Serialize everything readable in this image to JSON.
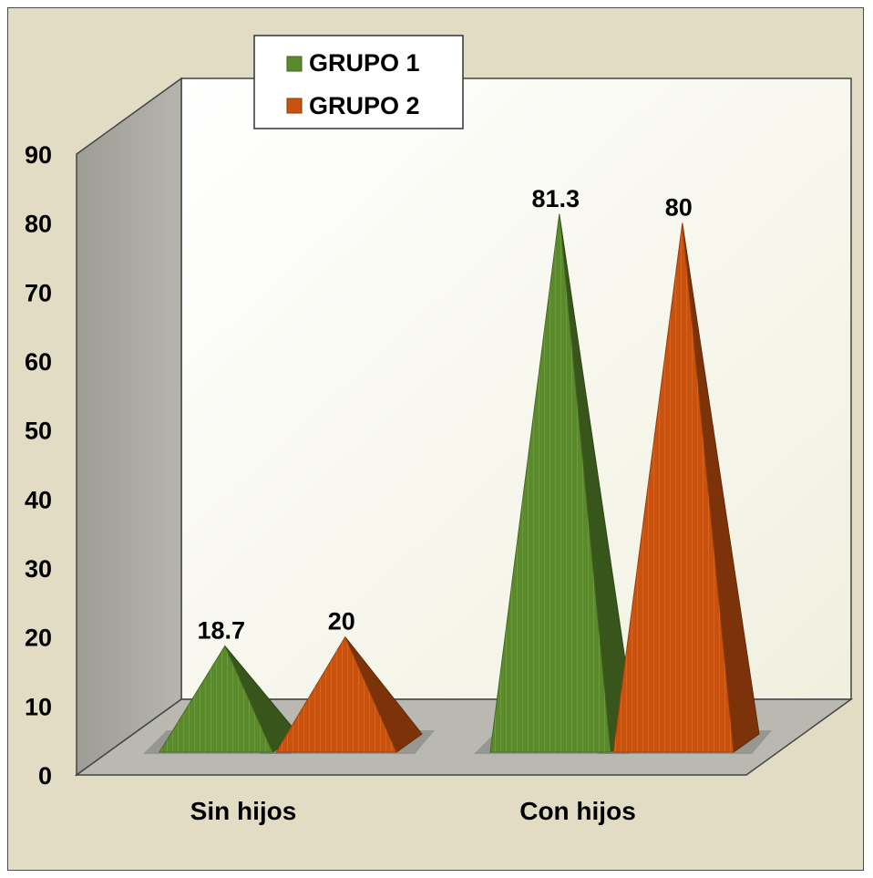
{
  "chart_data": {
    "type": "bar",
    "style": "3d-pyramid",
    "categories": [
      "Sin hijos",
      "Con hijos"
    ],
    "series": [
      {
        "name": "GRUPO 1",
        "values": [
          18.7,
          81.3
        ],
        "color": "#5a8a2c"
      },
      {
        "name": "GRUPO 2",
        "values": [
          20,
          80
        ],
        "color": "#c8520e"
      }
    ],
    "data_labels": [
      [
        "18.7",
        "81.3"
      ],
      [
        "20",
        "80"
      ]
    ],
    "yticks": [
      "0",
      "10",
      "20",
      "30",
      "40",
      "50",
      "60",
      "70",
      "80",
      "90"
    ],
    "ylim": [
      0,
      90
    ],
    "legend_position": "top",
    "grid": false,
    "colors": {
      "background": "#e3dcc4",
      "back_wall": "#f4f4e6",
      "side_wall": "#a9a9a1",
      "floor": "#b9b9b2"
    }
  }
}
